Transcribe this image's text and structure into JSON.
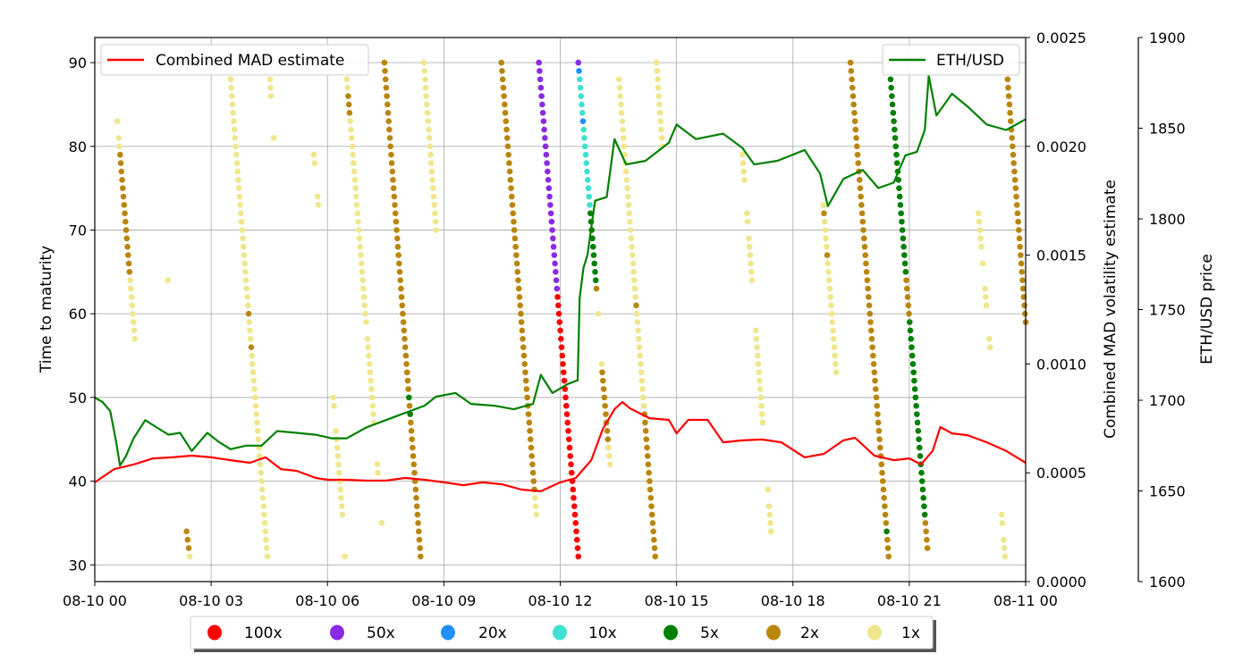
{
  "chart_data": {
    "type": "line+scatter",
    "grid": true,
    "x_axis": {
      "type": "date",
      "lim": [
        "08-10 00:00",
        "08-11 00:00"
      ],
      "ticks": [
        "08-10 00",
        "08-10 03",
        "08-10 06",
        "08-10 09",
        "08-10 12",
        "08-10 15",
        "08-10 18",
        "08-10 21",
        "08-11 00"
      ]
    },
    "left_axis": {
      "label": "Time to maturity",
      "lim": [
        28,
        93
      ],
      "ticks": [
        30,
        40,
        50,
        60,
        70,
        80,
        90
      ]
    },
    "mid_axis": {
      "label": "Combined MAD volatility estimate",
      "lim": [
        0,
        0.0025
      ],
      "ticks": [
        "0.0000",
        "0.0005",
        "0.0010",
        "0.0015",
        "0.0020",
        "0.0025"
      ]
    },
    "right_axis": {
      "label": "ETH/USD price",
      "lim": [
        1600,
        1900
      ],
      "ticks": [
        1600,
        1650,
        1700,
        1750,
        1800,
        1850,
        1900
      ]
    },
    "legend_top_left": {
      "label": "Combined MAD estimate",
      "color": "#ff0000",
      "placement": "upper-left"
    },
    "legend_top_right": {
      "label": "ETH/USD",
      "color": "#008000",
      "placement": "upper-right"
    },
    "scatter_legend": {
      "placement": "below",
      "items": [
        {
          "key": "100x",
          "label": "100x",
          "color": "#ff0000"
        },
        {
          "key": "50x",
          "label": "50x",
          "color": "#8a2be2"
        },
        {
          "key": "20x",
          "label": "20x",
          "color": "#1e90ff"
        },
        {
          "key": "10x",
          "label": "10x",
          "color": "#40e0d0"
        },
        {
          "key": "5x",
          "label": "5x",
          "color": "#008000"
        },
        {
          "key": "2x",
          "label": "2x",
          "color": "#b8860b"
        },
        {
          "key": "1x",
          "label": "1x",
          "color": "#f0e68c"
        }
      ]
    },
    "series": [
      {
        "name": "Combined MAD estimate",
        "axis": "mid",
        "color": "#ff0000",
        "points": [
          [
            "08-10 00:00",
            0.000456
          ],
          [
            "08-10 00:30",
            0.000517
          ],
          [
            "08-10 01:00",
            0.000538
          ],
          [
            "08-10 01:30",
            0.000566
          ],
          [
            "08-10 02:00",
            0.000571
          ],
          [
            "08-10 02:30",
            0.000579
          ],
          [
            "08-10 03:00",
            0.000571
          ],
          [
            "08-10 03:30",
            0.000558
          ],
          [
            "08-10 04:00",
            0.000546
          ],
          [
            "08-10 04:24",
            0.000571
          ],
          [
            "08-10 04:48",
            0.000517
          ],
          [
            "08-10 05:12",
            0.000509
          ],
          [
            "08-10 05:42",
            0.000476
          ],
          [
            "08-10 06:00",
            0.000468
          ],
          [
            "08-10 06:30",
            0.000468
          ],
          [
            "08-10 07:00",
            0.000464
          ],
          [
            "08-10 07:30",
            0.000464
          ],
          [
            "08-10 08:00",
            0.000476
          ],
          [
            "08-10 08:30",
            0.000468
          ],
          [
            "08-10 09:00",
            0.000456
          ],
          [
            "08-10 09:30",
            0.000443
          ],
          [
            "08-10 10:00",
            0.000456
          ],
          [
            "08-10 10:30",
            0.000447
          ],
          [
            "08-10 11:00",
            0.000423
          ],
          [
            "08-10 11:30",
            0.000415
          ],
          [
            "08-10 12:00",
            0.000456
          ],
          [
            "08-10 12:24",
            0.000476
          ],
          [
            "08-10 12:48",
            0.000558
          ],
          [
            "08-10 13:06",
            0.000702
          ],
          [
            "08-10 13:24",
            0.000792
          ],
          [
            "08-10 13:36",
            0.000825
          ],
          [
            "08-10 13:48",
            0.000796
          ],
          [
            "08-10 14:18",
            0.000751
          ],
          [
            "08-10 14:48",
            0.000743
          ],
          [
            "08-10 15:00",
            0.000681
          ],
          [
            "08-10 15:18",
            0.000743
          ],
          [
            "08-10 15:48",
            0.000743
          ],
          [
            "08-10 16:12",
            0.00064
          ],
          [
            "08-10 16:42",
            0.000649
          ],
          [
            "08-10 17:12",
            0.000653
          ],
          [
            "08-10 17:42",
            0.00064
          ],
          [
            "08-10 18:18",
            0.000571
          ],
          [
            "08-10 18:48",
            0.000587
          ],
          [
            "08-10 19:18",
            0.000649
          ],
          [
            "08-10 19:36",
            0.000661
          ],
          [
            "08-10 20:06",
            0.000579
          ],
          [
            "08-10 20:36",
            0.000558
          ],
          [
            "08-10 21:00",
            0.000566
          ],
          [
            "08-10 21:18",
            0.000538
          ],
          [
            "08-10 21:36",
            0.0006
          ],
          [
            "08-10 21:48",
            0.00071
          ],
          [
            "08-10 22:06",
            0.000681
          ],
          [
            "08-10 22:30",
            0.000673
          ],
          [
            "08-10 23:00",
            0.00064
          ],
          [
            "08-10 23:30",
            0.0006
          ],
          [
            "08-11 00:00",
            0.000546
          ]
        ]
      },
      {
        "name": "ETH/USD",
        "axis": "right",
        "color": "#008000",
        "points": [
          [
            "08-10 00:00",
            1701.5
          ],
          [
            "08-10 00:12",
            1699
          ],
          [
            "08-10 00:24",
            1694
          ],
          [
            "08-10 00:33",
            1677
          ],
          [
            "08-10 00:39",
            1664
          ],
          [
            "08-10 00:48",
            1669
          ],
          [
            "08-10 01:00",
            1679
          ],
          [
            "08-10 01:18",
            1689
          ],
          [
            "08-10 01:36",
            1685
          ],
          [
            "08-10 01:54",
            1681
          ],
          [
            "08-10 02:12",
            1682
          ],
          [
            "08-10 02:30",
            1672
          ],
          [
            "08-10 02:54",
            1682
          ],
          [
            "08-10 03:12",
            1677
          ],
          [
            "08-10 03:30",
            1673
          ],
          [
            "08-10 03:54",
            1675
          ],
          [
            "08-10 04:18",
            1675
          ],
          [
            "08-10 04:42",
            1683
          ],
          [
            "08-10 05:12",
            1682
          ],
          [
            "08-10 05:42",
            1681
          ],
          [
            "08-10 06:06",
            1679
          ],
          [
            "08-10 06:30",
            1679
          ],
          [
            "08-10 07:00",
            1685
          ],
          [
            "08-10 07:30",
            1689
          ],
          [
            "08-10 08:00",
            1693
          ],
          [
            "08-10 08:30",
            1697
          ],
          [
            "08-10 08:48",
            1702
          ],
          [
            "08-10 09:18",
            1704
          ],
          [
            "08-10 09:42",
            1698
          ],
          [
            "08-10 10:18",
            1697
          ],
          [
            "08-10 10:48",
            1695
          ],
          [
            "08-10 11:18",
            1698
          ],
          [
            "08-10 11:30",
            1714
          ],
          [
            "08-10 11:48",
            1704
          ],
          [
            "08-10 12:12",
            1709
          ],
          [
            "08-10 12:27",
            1711
          ],
          [
            "08-10 12:30",
            1756
          ],
          [
            "08-10 12:36",
            1773
          ],
          [
            "08-10 12:42",
            1780
          ],
          [
            "08-10 12:54",
            1810
          ],
          [
            "08-10 13:12",
            1812
          ],
          [
            "08-10 13:24",
            1844
          ],
          [
            "08-10 13:42",
            1830
          ],
          [
            "08-10 14:12",
            1832
          ],
          [
            "08-10 14:48",
            1842
          ],
          [
            "08-10 15:00",
            1852
          ],
          [
            "08-10 15:30",
            1844
          ],
          [
            "08-10 16:12",
            1847
          ],
          [
            "08-10 16:42",
            1839
          ],
          [
            "08-10 17:00",
            1830
          ],
          [
            "08-10 17:36",
            1832
          ],
          [
            "08-10 18:18",
            1838
          ],
          [
            "08-10 18:42",
            1825
          ],
          [
            "08-10 18:54",
            1807
          ],
          [
            "08-10 19:18",
            1822
          ],
          [
            "08-10 19:48",
            1827
          ],
          [
            "08-10 20:12",
            1817
          ],
          [
            "08-10 20:36",
            1820
          ],
          [
            "08-10 20:54",
            1835
          ],
          [
            "08-10 21:12",
            1837
          ],
          [
            "08-10 21:24",
            1849
          ],
          [
            "08-10 21:30",
            1879
          ],
          [
            "08-10 21:42",
            1857
          ],
          [
            "08-10 22:06",
            1869
          ],
          [
            "08-10 22:30",
            1862
          ],
          [
            "08-10 23:00",
            1852
          ],
          [
            "08-10 23:30",
            1849
          ],
          [
            "08-11 00:00",
            1855
          ]
        ]
      }
    ],
    "scatter_axis": "left",
    "streaks": [
      {
        "from": "08-10 00:35",
        "to": "08-10 01:02",
        "runs": [
          [
            "1x",
            83,
            83
          ],
          [
            "1x",
            81,
            80
          ],
          [
            "2x",
            79,
            65
          ],
          [
            "1x",
            64,
            57
          ]
        ]
      },
      {
        "from": "08-10 01:53",
        "to": "08-10 01:53",
        "runs": [
          [
            "1x",
            64,
            64
          ]
        ]
      },
      {
        "from": "08-10 02:22",
        "to": "08-10 02:27",
        "runs": [
          [
            "2x",
            34,
            32
          ],
          [
            "1x",
            31,
            31
          ]
        ]
      },
      {
        "from": "08-10 03:30",
        "to": "08-10 04:27",
        "runs": [
          [
            "1x",
            88,
            61
          ],
          [
            "2x",
            60,
            60
          ],
          [
            "1x",
            59,
            57
          ],
          [
            "2x",
            56,
            56
          ],
          [
            "1x",
            55,
            31
          ]
        ]
      },
      {
        "from": "08-10 04:31",
        "to": "08-10 04:37",
        "runs": [
          [
            "1x",
            88,
            86
          ],
          [
            "1x",
            81,
            81
          ]
        ]
      },
      {
        "from": "08-10 05:39",
        "to": "08-10 05:46",
        "runs": [
          [
            "1x",
            79,
            78
          ],
          [
            "1x",
            74,
            73
          ]
        ]
      },
      {
        "from": "08-10 06:09",
        "to": "08-10 06:23",
        "runs": [
          [
            "1x",
            50,
            49
          ],
          [
            "1x",
            46,
            36
          ]
        ]
      },
      {
        "from": "08-10 06:27",
        "to": "08-10 06:27",
        "runs": [
          [
            "1x",
            31,
            31
          ]
        ]
      },
      {
        "from": "08-10 06:30",
        "to": "08-10 07:12",
        "runs": [
          [
            "1x",
            88,
            87
          ],
          [
            "2x",
            86,
            84
          ],
          [
            "1x",
            83,
            59
          ],
          [
            "1x",
            57,
            47
          ]
        ]
      },
      {
        "from": "08-10 07:17",
        "to": "08-10 07:24",
        "runs": [
          [
            "1x",
            42,
            41
          ],
          [
            "1x",
            35,
            35
          ]
        ]
      },
      {
        "from": "08-10 07:28",
        "to": "08-10 08:24",
        "runs": [
          [
            "2x",
            90,
            51
          ],
          [
            "5x",
            50,
            50
          ],
          [
            "2x",
            49,
            49
          ],
          [
            "5x",
            48,
            48
          ],
          [
            "2x",
            47,
            31
          ]
        ]
      },
      {
        "from": "08-10 08:29",
        "to": "08-10 08:48",
        "runs": [
          [
            "1x",
            90,
            70
          ]
        ]
      },
      {
        "from": "08-10 10:29",
        "to": "08-10 11:23",
        "runs": [
          [
            "2x",
            90,
            39
          ],
          [
            "1x",
            38,
            36
          ]
        ]
      },
      {
        "from": "08-10 11:27",
        "to": "08-10 12:28",
        "runs": [
          [
            "50x",
            90,
            63
          ],
          [
            "100x",
            62,
            31
          ]
        ]
      },
      {
        "from": "08-10 12:28",
        "to": "08-10 12:56",
        "runs": [
          [
            "50x",
            90,
            90
          ],
          [
            "20x",
            89,
            89
          ],
          [
            "10x",
            88,
            84
          ],
          [
            "20x",
            83,
            83
          ],
          [
            "10x",
            82,
            73
          ],
          [
            "5x",
            72,
            64
          ],
          [
            "2x",
            63,
            63
          ]
        ]
      },
      {
        "from": "08-10 12:59",
        "to": "08-10 12:59",
        "runs": [
          [
            "1x",
            60,
            60
          ]
        ]
      },
      {
        "from": "08-10 13:04",
        "to": "08-10 13:17",
        "runs": [
          [
            "1x",
            54,
            54
          ],
          [
            "2x",
            53,
            45
          ],
          [
            "1x",
            44,
            42
          ]
        ]
      },
      {
        "from": "08-10 13:31",
        "to": "08-10 14:27",
        "runs": [
          [
            "1x",
            88,
            62
          ],
          [
            "2x",
            61,
            61
          ],
          [
            "1x",
            60,
            49
          ],
          [
            "2x",
            48,
            31
          ]
        ]
      },
      {
        "from": "08-10 14:29",
        "to": "08-10 14:38",
        "runs": [
          [
            "1x",
            90,
            80
          ]
        ]
      },
      {
        "from": "08-10 16:42",
        "to": "08-10 17:26",
        "runs": [
          [
            "1x",
            79,
            76
          ],
          [
            "1x",
            72,
            71
          ],
          [
            "1x",
            69,
            64
          ],
          [
            "1x",
            58,
            47
          ],
          [
            "1x",
            39,
            39
          ],
          [
            "1x",
            37,
            34
          ]
        ]
      },
      {
        "from": "08-10 18:47",
        "to": "08-10 19:07",
        "runs": [
          [
            "1x",
            73,
            73
          ],
          [
            "2x",
            72,
            72
          ],
          [
            "1x",
            71,
            68
          ],
          [
            "2x",
            67,
            67
          ],
          [
            "1x",
            66,
            53
          ]
        ]
      },
      {
        "from": "08-10 19:29",
        "to": "08-10 20:28",
        "runs": [
          [
            "2x",
            90,
            35
          ],
          [
            "5x",
            34,
            34
          ],
          [
            "2x",
            33,
            31
          ]
        ]
      },
      {
        "from": "08-10 20:31",
        "to": "08-10 21:28",
        "runs": [
          [
            "5x",
            88,
            65
          ],
          [
            "2x",
            64,
            60
          ],
          [
            "5x",
            59,
            36
          ],
          [
            "2x",
            35,
            32
          ]
        ]
      },
      {
        "from": "08-10 22:47",
        "to": "08-10 23:05",
        "runs": [
          [
            "1x",
            72,
            68
          ],
          [
            "1x",
            66,
            66
          ],
          [
            "1x",
            63,
            61
          ],
          [
            "1x",
            57,
            56
          ]
        ]
      },
      {
        "from": "08-10 23:23",
        "to": "08-10 23:28",
        "runs": [
          [
            "1x",
            36,
            35
          ],
          [
            "1x",
            33,
            31
          ]
        ]
      },
      {
        "from": "08-10 23:32",
        "to": "08-11 00:00",
        "runs": [
          [
            "2x",
            88,
            59
          ]
        ]
      }
    ]
  }
}
